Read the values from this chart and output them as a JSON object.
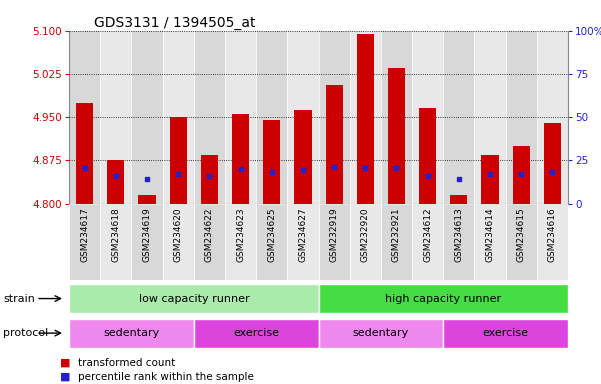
{
  "title": "GDS3131 / 1394505_at",
  "samples": [
    "GSM234617",
    "GSM234618",
    "GSM234619",
    "GSM234620",
    "GSM234622",
    "GSM234623",
    "GSM234625",
    "GSM234627",
    "GSM232919",
    "GSM232920",
    "GSM232921",
    "GSM234612",
    "GSM234613",
    "GSM234614",
    "GSM234615",
    "GSM234616"
  ],
  "transformed_count": [
    4.975,
    4.875,
    4.815,
    4.95,
    4.885,
    4.955,
    4.945,
    4.963,
    5.005,
    5.095,
    5.035,
    4.965,
    4.815,
    4.885,
    4.9,
    4.94
  ],
  "percentile_rank": [
    4.862,
    4.848,
    4.843,
    4.852,
    4.847,
    4.86,
    4.855,
    4.858,
    4.864,
    4.862,
    4.862,
    4.848,
    4.843,
    4.852,
    4.852,
    4.855
  ],
  "bar_bottom": 4.8,
  "ylim_min": 4.8,
  "ylim_max": 5.1,
  "yticks_left": [
    4.8,
    4.875,
    4.95,
    5.025,
    5.1
  ],
  "yticks_right": [
    0,
    25,
    50,
    75,
    100
  ],
  "ytick_right_labels": [
    "0",
    "25",
    "50",
    "75",
    "100%"
  ],
  "bar_color": "#cc0000",
  "dot_color": "#2222cc",
  "grid_color": "#000000",
  "col_colors": [
    "#d8d8d8",
    "#e8e8e8"
  ],
  "strain_groups": [
    {
      "label": "low capacity runner",
      "start": 0,
      "end": 8,
      "color": "#aaeaaa"
    },
    {
      "label": "high capacity runner",
      "start": 8,
      "end": 16,
      "color": "#44dd44"
    }
  ],
  "protocol_groups": [
    {
      "label": "sedentary",
      "start": 0,
      "end": 4,
      "color": "#ee88ee"
    },
    {
      "label": "exercise",
      "start": 4,
      "end": 8,
      "color": "#dd44dd"
    },
    {
      "label": "sedentary",
      "start": 8,
      "end": 12,
      "color": "#ee88ee"
    },
    {
      "label": "exercise",
      "start": 12,
      "end": 16,
      "color": "#dd44dd"
    }
  ],
  "legend_items": [
    {
      "label": "transformed count",
      "color": "#cc0000"
    },
    {
      "label": "percentile rank within the sample",
      "color": "#2222cc"
    }
  ],
  "strain_label": "strain",
  "protocol_label": "protocol",
  "bar_width": 0.55,
  "tick_label_color": "#cc0000",
  "right_tick_color": "#2222cc",
  "background_color": "#ffffff",
  "n_samples": 16
}
